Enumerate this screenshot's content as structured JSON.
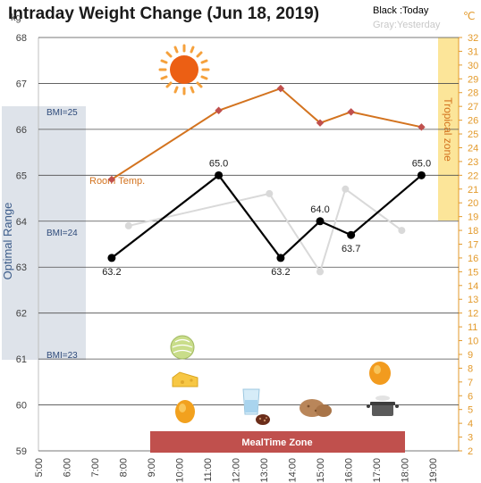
{
  "chart_data": {
    "type": "line",
    "title": "Intraday Weight Change (Jun 18, 2019)",
    "legend": {
      "today": "Black :Today",
      "yesterday": "Gray:Yesterday"
    },
    "y_unit": "kg",
    "y2_unit": "℃",
    "ylim": [
      59,
      68
    ],
    "y_ticks": [
      "59",
      "60",
      "61",
      "62",
      "63",
      "64",
      "65",
      "66",
      "67",
      "68"
    ],
    "y2lim": [
      2,
      32
    ],
    "y2_ticks": [
      "2",
      "3",
      "4",
      "5",
      "6",
      "7",
      "8",
      "9",
      "10",
      "11",
      "12",
      "13",
      "14",
      "15",
      "16",
      "17",
      "18",
      "19",
      "20",
      "21",
      "22",
      "23",
      "24",
      "25",
      "26",
      "27",
      "28",
      "29",
      "30",
      "31",
      "32"
    ],
    "x_ticks": [
      "5:00",
      "6:00",
      "7:00",
      "8:00",
      "9:00",
      "10:00",
      "11:00",
      "12:00",
      "13:00",
      "14:00",
      "15:00",
      "16:00",
      "17:00",
      "18:00",
      "19:00"
    ],
    "series": [
      {
        "name": "Today",
        "color": "#000000",
        "x": [
          7.6,
          11.4,
          13.6,
          15.0,
          16.1,
          18.6
        ],
        "y": [
          63.2,
          65.0,
          63.2,
          64.0,
          63.7,
          65.0
        ],
        "labels": [
          "63.2",
          "65.0",
          "63.2",
          "64.0",
          "63.7",
          "65.0"
        ]
      },
      {
        "name": "Yesterday",
        "color": "#d9d9d9",
        "x": [
          8.2,
          13.2,
          15.0,
          15.9,
          17.9
        ],
        "y": [
          63.9,
          64.6,
          62.9,
          64.7,
          63.8
        ]
      },
      {
        "name": "Room Temp.",
        "color": "#d3731f",
        "axis": "right",
        "x": [
          7.6,
          11.4,
          13.6,
          15.0,
          16.1,
          18.6
        ],
        "y": [
          21.7,
          26.7,
          28.3,
          25.8,
          26.6,
          25.5
        ]
      }
    ],
    "annotations": {
      "optimal_range": "Optimal Range",
      "bmi_25": "BMI=25",
      "bmi_24": "BMI=24",
      "bmi_23": "BMI=23",
      "tropical_zone": "Tropical zone",
      "meal_zone": "MealTime Zone",
      "room_temp_label": "Room Temp."
    },
    "colors": {
      "optimal": "#dee3ea",
      "tropical": "#fce599",
      "meal": "#c0504d",
      "temp": "#d3731f",
      "sun": "#f07d0e"
    },
    "icons": [
      "sun-icon",
      "melon-icon",
      "cheese-icon",
      "mango-icon",
      "water-glass-icon",
      "dates-icon",
      "potatoes-icon",
      "cooking-pot-icon",
      "papaya-icon"
    ]
  }
}
